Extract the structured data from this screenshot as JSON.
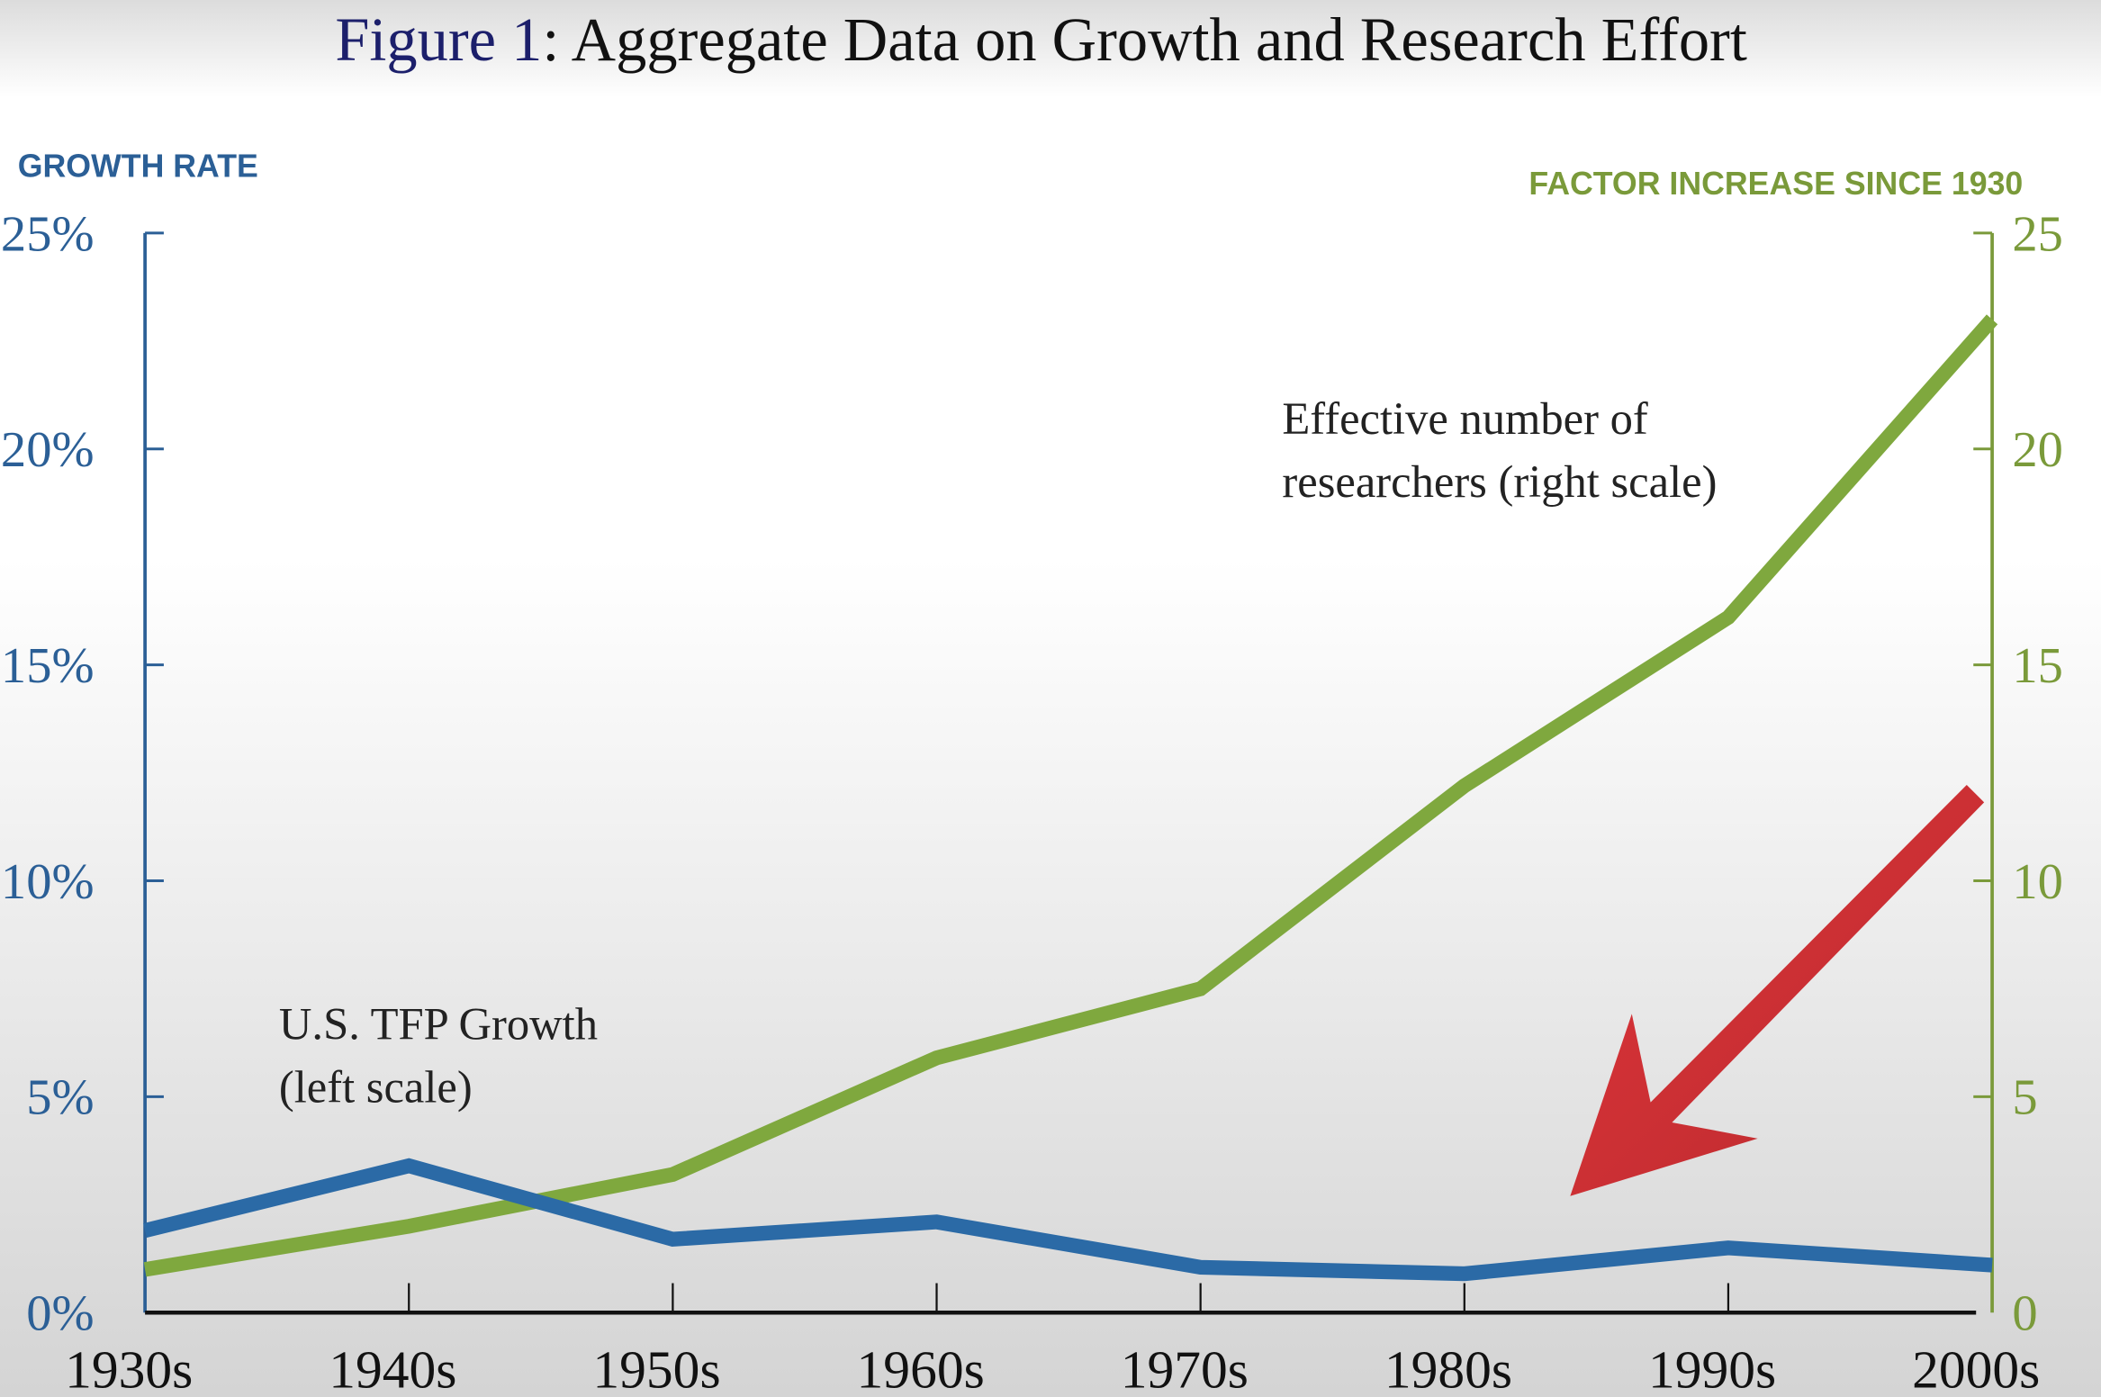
{
  "chart_data": {
    "type": "line",
    "title_prefix": "Figure 1",
    "title_rest": ": Aggregate Data on Growth and Research Effort",
    "title": "Figure 1: Aggregate Data on Growth and Research Effort",
    "categories": [
      "1930s",
      "1940s",
      "1950s",
      "1960s",
      "1970s",
      "1980s",
      "1990s",
      "2000s"
    ],
    "left_axis": {
      "label": "GROWTH RATE",
      "ylim": [
        0,
        25
      ],
      "ticks": [
        "0%",
        "5%",
        "10%",
        "15%",
        "20%",
        "25%"
      ],
      "tick_values": [
        0,
        5,
        10,
        15,
        20,
        25
      ],
      "color": "#2b5f96"
    },
    "right_axis": {
      "label": "FACTOR INCREASE SINCE 1930",
      "ylim": [
        0,
        25
      ],
      "ticks": [
        "0",
        "5",
        "10",
        "15",
        "20",
        "25"
      ],
      "tick_values": [
        0,
        5,
        10,
        15,
        20,
        25
      ],
      "color": "#7a9a3a"
    },
    "series": [
      {
        "name": "U.S. TFP Growth",
        "annotation": [
          "U.S. TFP Growth",
          "(left scale)"
        ],
        "axis": "left",
        "color": "#2b6aa6",
        "values": [
          1.9,
          3.4,
          1.7,
          2.1,
          1.05,
          0.9,
          1.5,
          1.1
        ]
      },
      {
        "name": "Effective number of researchers",
        "annotation": [
          "Effective number of",
          "researchers (right scale)"
        ],
        "axis": "right",
        "color": "#7fa83e",
        "values": [
          1.0,
          2.0,
          3.2,
          5.9,
          7.5,
          12.2,
          16.1,
          23.0
        ]
      }
    ],
    "overlay_arrow": {
      "color": "#d32f34",
      "direction": "down-left"
    },
    "grid": false
  }
}
